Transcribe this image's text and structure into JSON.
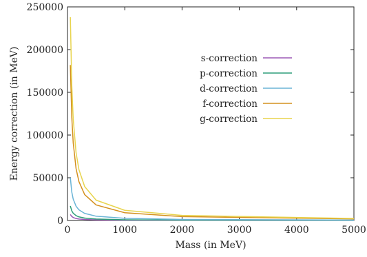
{
  "chart_data": {
    "type": "line",
    "title": "",
    "xlabel": "Mass (in MeV)",
    "ylabel": "Energy correction (in MeV)",
    "xlim": [
      0,
      5000
    ],
    "ylim": [
      0,
      250000
    ],
    "xticks": [
      0,
      1000,
      2000,
      3000,
      4000,
      5000
    ],
    "yticks": [
      0,
      50000,
      100000,
      150000,
      200000,
      250000
    ],
    "xtick_labels": [
      "0",
      "1000",
      "2000",
      "3000",
      "4000",
      "5000"
    ],
    "ytick_labels": [
      "0",
      "50000",
      "100000",
      "150000",
      "200000",
      "250000"
    ],
    "grid": false,
    "legend_position": "top-right",
    "series": [
      {
        "name": "s-correction",
        "color": "#9b59b6",
        "x": [
          50,
          75,
          100,
          150,
          200,
          300,
          500,
          1000,
          2000,
          5000
        ],
        "y": [
          7000,
          4700,
          3500,
          2300,
          1700,
          1200,
          700,
          350,
          180,
          70
        ]
      },
      {
        "name": "p-correction",
        "color": "#2e9e7a",
        "x": [
          50,
          75,
          100,
          150,
          200,
          300,
          500,
          1000,
          2000,
          5000
        ],
        "y": [
          17000,
          11300,
          8500,
          5700,
          4200,
          2800,
          1700,
          850,
          420,
          170
        ]
      },
      {
        "name": "d-correction",
        "color": "#6ab4d6",
        "x": [
          50,
          75,
          100,
          150,
          200,
          300,
          500,
          1000,
          2000,
          5000
        ],
        "y": [
          50000,
          33300,
          25000,
          16700,
          12500,
          8300,
          5000,
          2500,
          1250,
          500
        ]
      },
      {
        "name": "f-correction",
        "color": "#d4901e",
        "x": [
          50,
          75,
          100,
          150,
          200,
          300,
          500,
          1000,
          2000,
          5000
        ],
        "y": [
          182000,
          121000,
          91000,
          60700,
          45500,
          30300,
          18200,
          9100,
          4550,
          1820
        ]
      },
      {
        "name": "g-correction",
        "color": "#e8d44d",
        "x": [
          50,
          75,
          100,
          150,
          200,
          300,
          500,
          1000,
          2000,
          5000
        ],
        "y": [
          238000,
          158700,
          119000,
          79300,
          59500,
          39700,
          23800,
          11900,
          5950,
          2380
        ]
      }
    ]
  }
}
